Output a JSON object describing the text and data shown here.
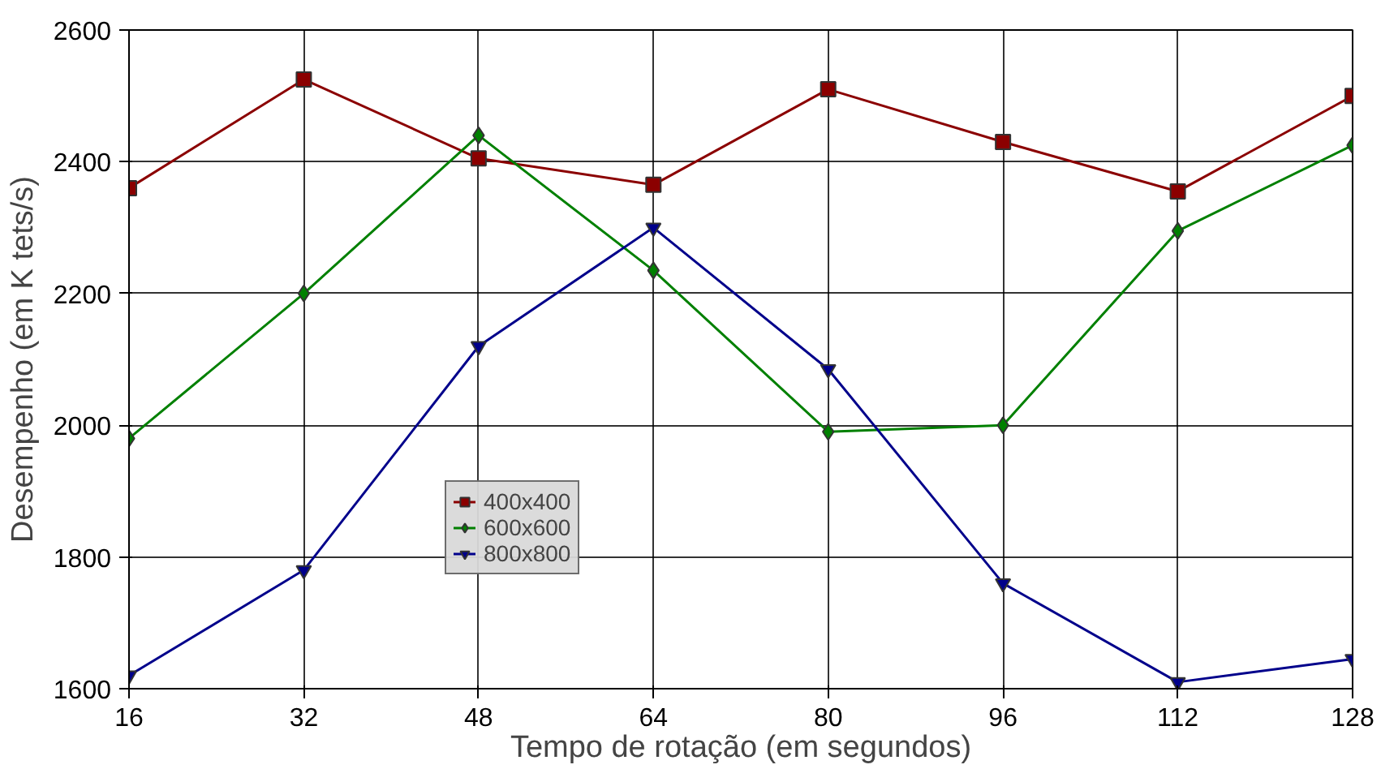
{
  "chart_data": {
    "type": "line",
    "xlabel": "Tempo de rotação (em segundos)",
    "ylabel": "Desempenho (em K tets/s)",
    "x": [
      16,
      32,
      48,
      64,
      80,
      96,
      112,
      128
    ],
    "xlim": [
      16,
      128
    ],
    "xticks": [
      16,
      32,
      48,
      64,
      80,
      96,
      112,
      128
    ],
    "ylim": [
      1600,
      2600
    ],
    "yticks": [
      1600,
      1800,
      2000,
      2200,
      2400,
      2600
    ],
    "grid": true,
    "legend": "center left",
    "line_style": "solid",
    "series": [
      {
        "name": "400x400",
        "color": "#8b0000",
        "marker": "square",
        "values": [
          2360,
          2525,
          2405,
          2365,
          2510,
          2430,
          2355,
          2500
        ]
      },
      {
        "name": "600x600",
        "color": "#008000",
        "marker": "diamond",
        "values": [
          1980,
          2200,
          2440,
          2235,
          1990,
          2000,
          2295,
          2425
        ]
      },
      {
        "name": "800x800",
        "color": "#00008b",
        "marker": "triangle",
        "values": [
          1620,
          1780,
          2120,
          2300,
          2085,
          1760,
          1610,
          1645
        ]
      }
    ]
  }
}
